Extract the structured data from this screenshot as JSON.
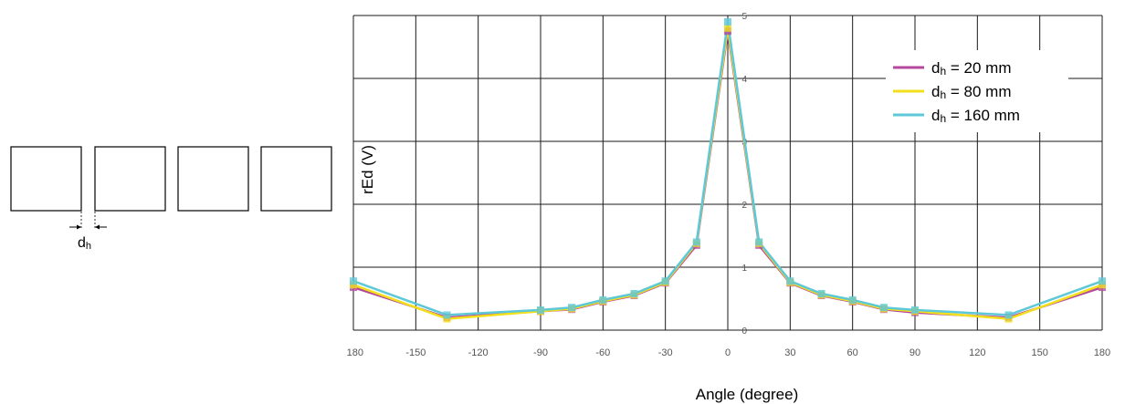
{
  "diagram": {
    "gap_label": "d",
    "gap_label_sub": "h",
    "box_count": 4
  },
  "chart_data": {
    "type": "line",
    "xlabel": "Angle (degree)",
    "ylabel": "rEd (V)",
    "x_ticks": [
      "-180",
      "-150",
      "-120",
      "-90",
      "-60",
      "-30",
      "0",
      "30",
      "60",
      "90",
      "120",
      "150",
      "180"
    ],
    "y_ticks": [
      "0",
      "1",
      "2",
      "3",
      "4",
      "5"
    ],
    "xlim": [
      -180,
      180
    ],
    "ylim": [
      0,
      5
    ],
    "grid": true,
    "legend_position": "top-right",
    "x": [
      -180,
      -135,
      -90,
      -75,
      -60,
      -45,
      -30,
      -15,
      0,
      15,
      30,
      45,
      60,
      75,
      90,
      135,
      180
    ],
    "series": [
      {
        "name": "dh = 20 mm",
        "legend_main": "d",
        "legend_sub": "h",
        "legend_rest": " = 20 mm",
        "color": "#b5489c",
        "values": [
          0.68,
          0.2,
          0.3,
          0.33,
          0.45,
          0.55,
          0.75,
          1.35,
          4.75,
          1.35,
          0.75,
          0.55,
          0.45,
          0.33,
          0.28,
          0.2,
          0.68
        ]
      },
      {
        "name": "dh = 80 mm",
        "legend_main": "d",
        "legend_sub": "h",
        "legend_rest": " = 80 mm",
        "color": "#f2e01c",
        "values": [
          0.72,
          0.18,
          0.3,
          0.34,
          0.46,
          0.56,
          0.76,
          1.38,
          4.8,
          1.38,
          0.76,
          0.56,
          0.46,
          0.34,
          0.3,
          0.18,
          0.72
        ]
      },
      {
        "name": "dh = 160 mm",
        "legend_main": "d",
        "legend_sub": "h",
        "legend_rest": " = 160 mm",
        "color": "#5cc8d8",
        "values": [
          0.78,
          0.24,
          0.32,
          0.36,
          0.48,
          0.58,
          0.78,
          1.4,
          4.9,
          1.4,
          0.78,
          0.58,
          0.48,
          0.36,
          0.32,
          0.24,
          0.78
        ]
      }
    ]
  }
}
